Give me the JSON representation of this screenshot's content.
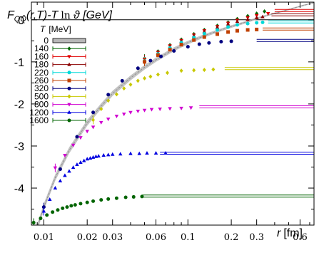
{
  "chart_data": {
    "type": "scatter",
    "title_pre": "F",
    "title_sub": "QQ̄",
    "title_mid": "(r,T)-T",
    "title_ln": "ln",
    "title_post": "ϑ [GeV]",
    "xlabel_var": "r",
    "xlabel_unit": "[fm]",
    "x_scale": "log",
    "xlim": [
      0.0082,
      0.75
    ],
    "ylim": [
      -4.88,
      0.42
    ],
    "x_ticks": [
      {
        "v": 0.01,
        "label": "0.01"
      },
      {
        "v": 0.02,
        "label": "0.02"
      },
      {
        "v": 0.03,
        "label": "0.03"
      },
      {
        "v": 0.06,
        "label": "0.06"
      },
      {
        "v": 0.1,
        "label": "0.1"
      },
      {
        "v": 0.2,
        "label": "0.2"
      },
      {
        "v": 0.3,
        "label": "0.3"
      },
      {
        "v": 0.6,
        "label": "0.6"
      }
    ],
    "y_ticks": [
      {
        "v": 0,
        "label": "0"
      },
      {
        "v": -1,
        "label": "-1"
      },
      {
        "v": -2,
        "label": "-2"
      },
      {
        "v": -3,
        "label": "-3"
      },
      {
        "v": -4,
        "label": "-4"
      }
    ],
    "legend_title": "T",
    "legend_unit": "[MeV]",
    "legend_placement": "top-left",
    "band": {
      "name": "0",
      "color": "#b8b8b8",
      "x": [
        0.0085,
        0.01,
        0.012,
        0.015,
        0.02,
        0.025,
        0.03,
        0.04,
        0.05,
        0.06,
        0.08,
        0.1,
        0.13,
        0.16,
        0.2,
        0.25,
        0.3,
        0.35,
        0.45,
        0.6,
        0.75
      ],
      "y": [
        -5.2,
        -4.45,
        -3.75,
        -3.1,
        -2.45,
        -2.05,
        -1.75,
        -1.38,
        -1.13,
        -0.95,
        -0.7,
        -0.54,
        -0.38,
        -0.27,
        -0.16,
        -0.06,
        0.03,
        0.1,
        0.2,
        0.32,
        0.41
      ]
    },
    "series": [
      {
        "name": "140",
        "color": "#006400",
        "marker": "diamond",
        "x": [
          0.05,
          0.062,
          0.075,
          0.09,
          0.11,
          0.13,
          0.16,
          0.19,
          0.22,
          0.26,
          0.3,
          0.34
        ],
        "y": [
          -0.92,
          -0.75,
          -0.6,
          -0.47,
          -0.34,
          -0.24,
          -0.14,
          -0.06,
          0.02,
          0.09,
          0.15,
          0.2
        ],
        "asymptote": null
      },
      {
        "name": "160",
        "color": "#e00000",
        "marker": "tri-down",
        "x": [
          0.05,
          0.062,
          0.075,
          0.09,
          0.11,
          0.13,
          0.16,
          0.19,
          0.22,
          0.26,
          0.3,
          0.36
        ],
        "y": [
          -0.94,
          -0.77,
          -0.62,
          -0.49,
          -0.36,
          -0.26,
          -0.16,
          -0.08,
          -0.01,
          0.05,
          0.1,
          0.15
        ],
        "asymptote": {
          "x_from": 0.4,
          "value": 0.22
        }
      },
      {
        "name": "180",
        "color": "#8b0000",
        "marker": "tri-up",
        "x": [
          0.05,
          0.062,
          0.075,
          0.09,
          0.11,
          0.13,
          0.16,
          0.19,
          0.22,
          0.26,
          0.3,
          0.33
        ],
        "y": [
          -0.96,
          -0.79,
          -0.64,
          -0.51,
          -0.38,
          -0.28,
          -0.18,
          -0.1,
          -0.04,
          0.01,
          0.05,
          0.07
        ],
        "asymptote": {
          "x_from": 0.38,
          "value": 0.12
        }
      },
      {
        "name": "220",
        "color": "#00d8d8",
        "marker": "circle",
        "x": [
          0.05,
          0.062,
          0.075,
          0.09,
          0.11,
          0.13,
          0.16,
          0.19,
          0.22,
          0.26,
          0.3,
          0.33
        ],
        "y": [
          -0.98,
          -0.81,
          -0.67,
          -0.54,
          -0.42,
          -0.33,
          -0.24,
          -0.17,
          -0.12,
          -0.09,
          -0.07,
          -0.06
        ],
        "asymptote": {
          "x_from": 0.36,
          "value": -0.05
        }
      },
      {
        "name": "260",
        "color": "#c04000",
        "marker": "square",
        "x": [
          0.05,
          0.062,
          0.075,
          0.09,
          0.11,
          0.13,
          0.16,
          0.19,
          0.22,
          0.26,
          0.3
        ],
        "y": [
          -1.0,
          -0.84,
          -0.71,
          -0.59,
          -0.48,
          -0.41,
          -0.34,
          -0.29,
          -0.26,
          -0.24,
          -0.23
        ],
        "asymptote": {
          "x_from": 0.33,
          "value": -0.22
        }
      },
      {
        "name": "320",
        "color": "#000080",
        "marker": "circle",
        "x": [
          0.01,
          0.013,
          0.017,
          0.022,
          0.028,
          0.035,
          0.045,
          0.055,
          0.065,
          0.08,
          0.1,
          0.12,
          0.14,
          0.17,
          0.2
        ],
        "y": [
          -4.45,
          -3.55,
          -2.78,
          -2.2,
          -1.78,
          -1.45,
          -1.15,
          -0.97,
          -0.87,
          -0.74,
          -0.64,
          -0.58,
          -0.55,
          -0.52,
          -0.51
        ],
        "asymptote": {
          "x_from": 0.3,
          "value": -0.49
        }
      },
      {
        "name": "500",
        "color": "#c8c800",
        "marker": "diamond",
        "x": [
          0.022,
          0.025,
          0.028,
          0.032,
          0.036,
          0.04,
          0.045,
          0.05,
          0.055,
          0.062,
          0.072,
          0.09,
          0.11,
          0.13,
          0.15
        ],
        "y": [
          -2.38,
          -2.12,
          -1.92,
          -1.77,
          -1.63,
          -1.54,
          -1.45,
          -1.39,
          -1.35,
          -1.3,
          -1.26,
          -1.21,
          -1.2,
          -1.19,
          -1.18
        ],
        "asymptote": {
          "x_from": 0.18,
          "value": -1.16
        }
      },
      {
        "name": "800",
        "color": "#d000d0",
        "marker": "tri-down",
        "x": [
          0.012,
          0.014,
          0.016,
          0.018,
          0.02,
          0.022,
          0.025,
          0.028,
          0.032,
          0.036,
          0.04,
          0.045,
          0.05,
          0.056,
          0.064,
          0.075,
          0.09,
          0.105
        ],
        "y": [
          -3.52,
          -3.22,
          -2.98,
          -2.8,
          -2.65,
          -2.55,
          -2.44,
          -2.36,
          -2.29,
          -2.24,
          -2.2,
          -2.17,
          -2.15,
          -2.13,
          -2.12,
          -2.11,
          -2.1,
          -2.09
        ],
        "asymptote": {
          "x_from": 0.12,
          "value": -2.07
        }
      },
      {
        "name": "1200",
        "color": "#0000e0",
        "marker": "tri-up",
        "x": [
          0.01,
          0.011,
          0.012,
          0.013,
          0.014,
          0.015,
          0.016,
          0.017,
          0.018,
          0.019,
          0.02,
          0.021,
          0.022,
          0.023,
          0.024,
          0.026,
          0.028,
          0.03,
          0.034,
          0.04,
          0.046,
          0.052,
          0.06,
          0.07
        ],
        "y": [
          -4.55,
          -4.27,
          -4.0,
          -3.83,
          -3.7,
          -3.6,
          -3.51,
          -3.44,
          -3.39,
          -3.35,
          -3.31,
          -3.29,
          -3.27,
          -3.25,
          -3.24,
          -3.22,
          -3.21,
          -3.2,
          -3.19,
          -3.18,
          -3.18,
          -3.17,
          -3.17,
          -3.17
        ],
        "asymptote": {
          "x_from": 0.064,
          "value": -3.17
        }
      },
      {
        "name": "1600",
        "color": "#006400",
        "marker": "circle",
        "x": [
          0.0085,
          0.0095,
          0.0105,
          0.0115,
          0.0125,
          0.0135,
          0.0145,
          0.0155,
          0.0165,
          0.018,
          0.02,
          0.022,
          0.025,
          0.028,
          0.032,
          0.037,
          0.042,
          0.048
        ],
        "y": [
          -4.82,
          -4.72,
          -4.64,
          -4.57,
          -4.52,
          -4.48,
          -4.45,
          -4.42,
          -4.4,
          -4.37,
          -4.34,
          -4.31,
          -4.28,
          -4.26,
          -4.24,
          -4.22,
          -4.21,
          -4.2
        ],
        "asymptote": {
          "x_from": 0.048,
          "value": -4.19
        }
      }
    ]
  }
}
